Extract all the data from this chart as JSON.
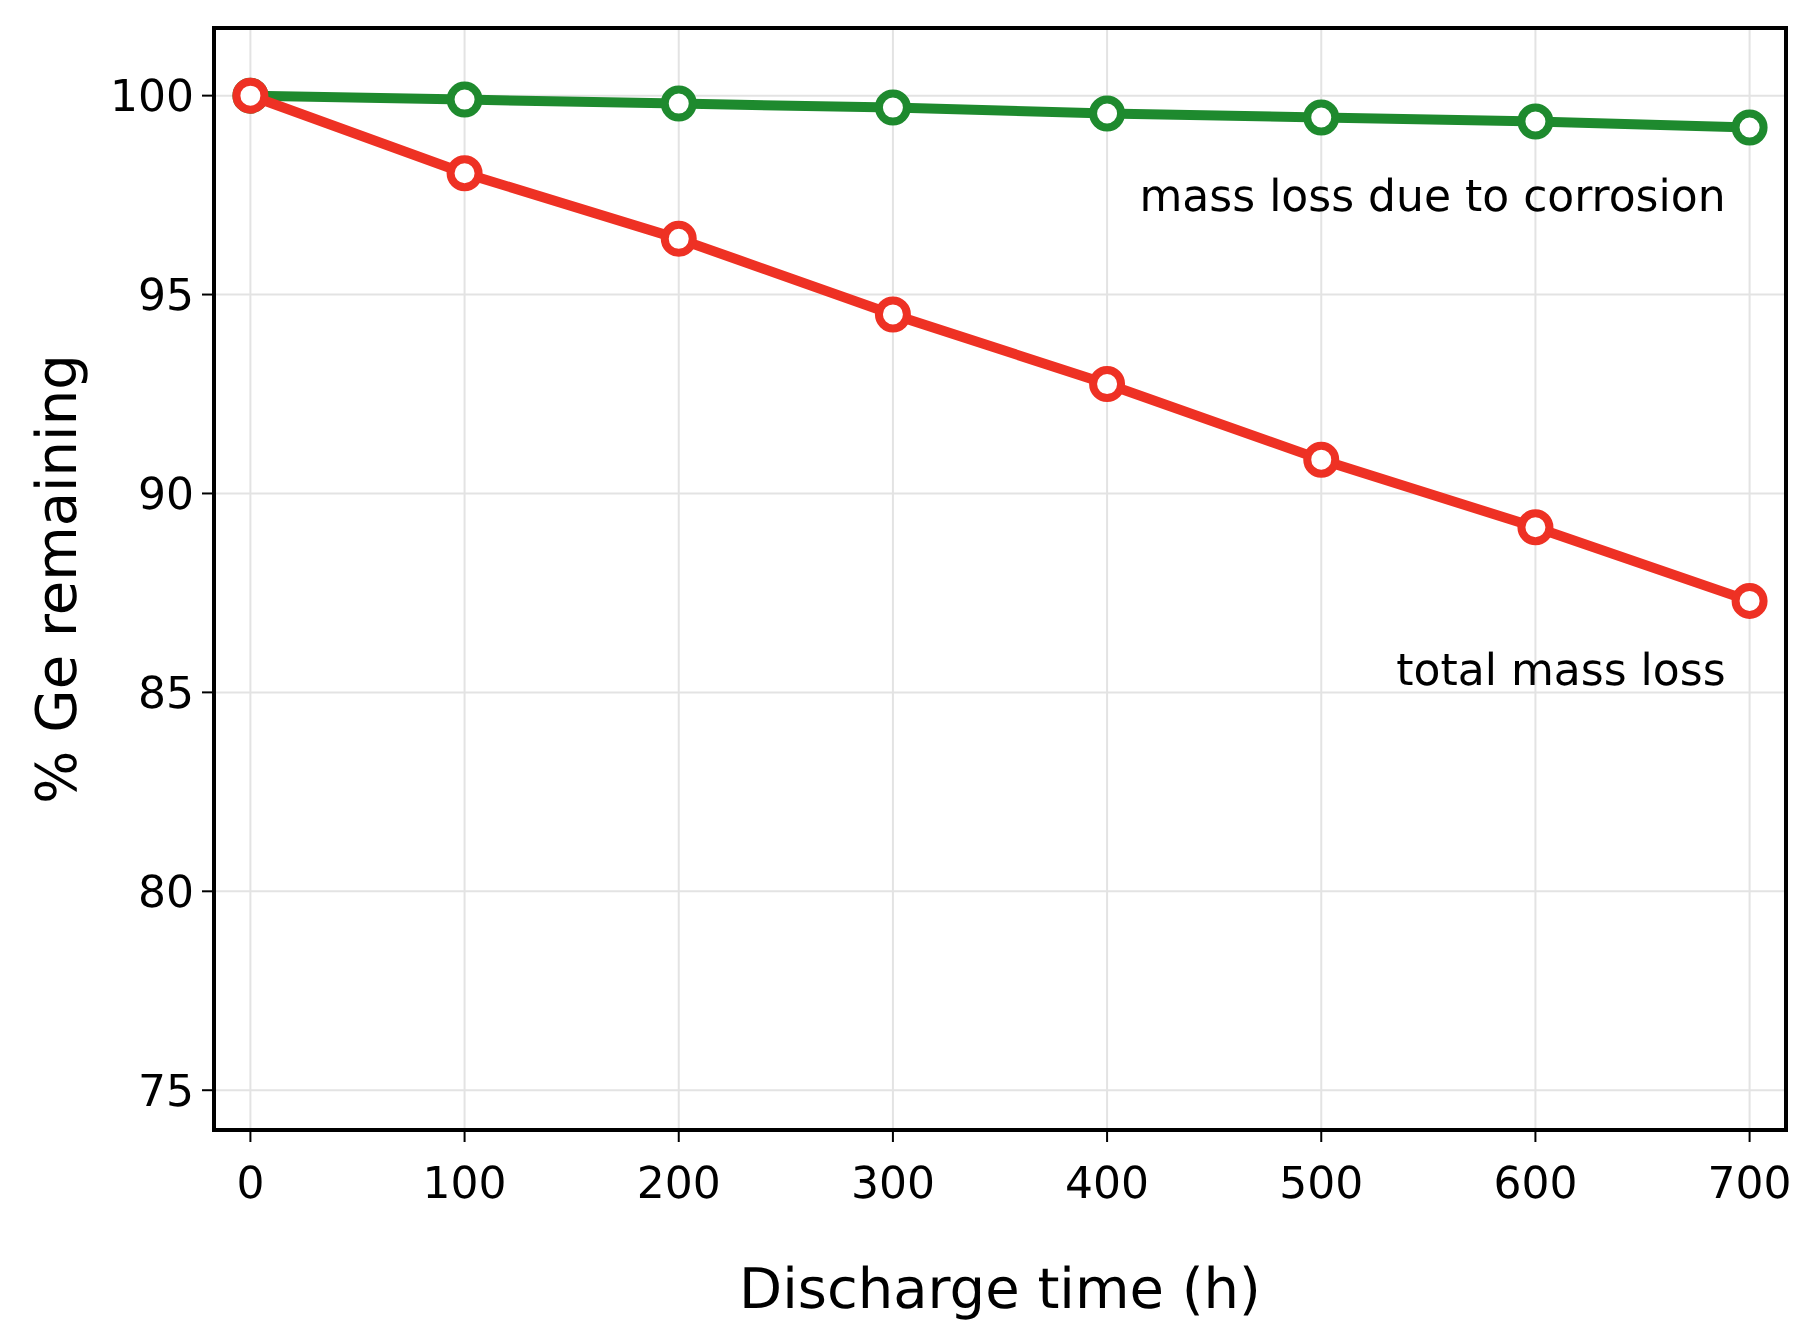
{
  "chart_data": {
    "type": "line",
    "xlabel": "Discharge time (h)",
    "ylabel": "% Ge remaining",
    "x": [
      0,
      100,
      200,
      300,
      400,
      500,
      600,
      700
    ],
    "series": [
      {
        "name": "mass loss due to corrosion",
        "color": "#1e8a2e",
        "values": [
          100,
          99.9,
          99.8,
          99.7,
          99.55,
          99.45,
          99.35,
          99.2
        ]
      },
      {
        "name": "total mass loss",
        "color": "#ee3124",
        "values": [
          100,
          98.05,
          96.4,
          94.5,
          92.75,
          90.85,
          89.15,
          87.3
        ]
      }
    ],
    "xlim": [
      -17,
      717
    ],
    "ylim": [
      74,
      101.7
    ],
    "xticks": [
      0,
      100,
      200,
      300,
      400,
      500,
      600,
      700
    ],
    "yticks": [
      75,
      80,
      85,
      90,
      95,
      100
    ],
    "grid": true,
    "marker": "circle",
    "line_style": "solid"
  }
}
